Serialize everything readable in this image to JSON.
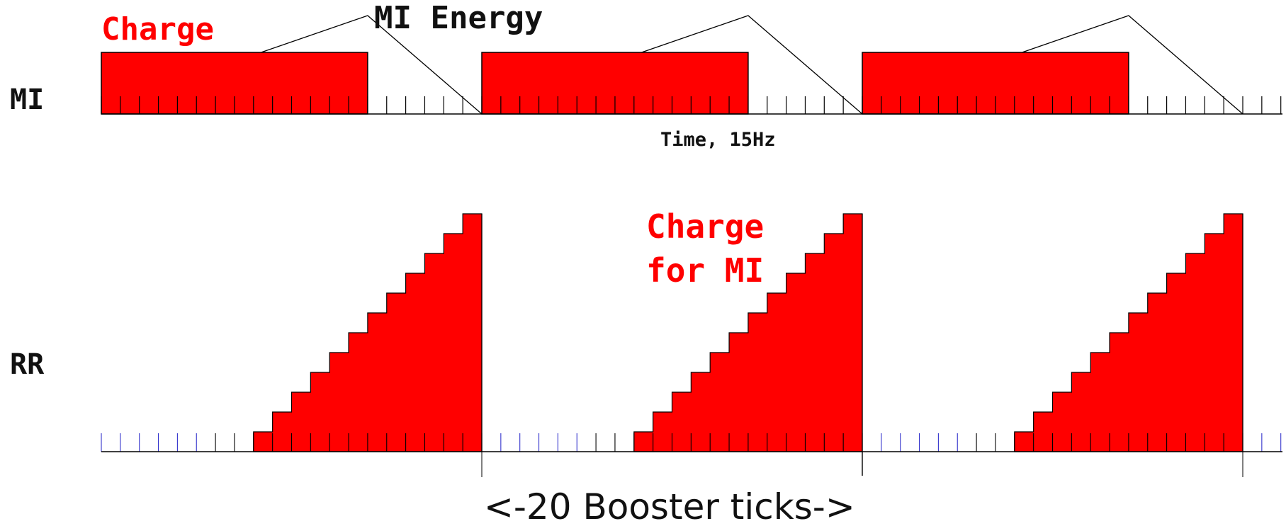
{
  "labels": {
    "mi": "MI",
    "rr": "RR",
    "charge": "Charge",
    "mi_energy": "MI Energy",
    "time_axis": "Time, 15Hz",
    "charge_for_mi_line1": "Charge",
    "charge_for_mi_line2": "for MI",
    "booster_ticks": "<-20 Booster ticks->"
  },
  "colors": {
    "charge_fill": "#ff0000",
    "line": "#000000",
    "tick_blue": "#3333cc"
  },
  "cycles": 3,
  "ticks_per_cycle": 20,
  "mi_charge_ticks_per_cycle": 14,
  "rr_staircase_steps": 12
}
